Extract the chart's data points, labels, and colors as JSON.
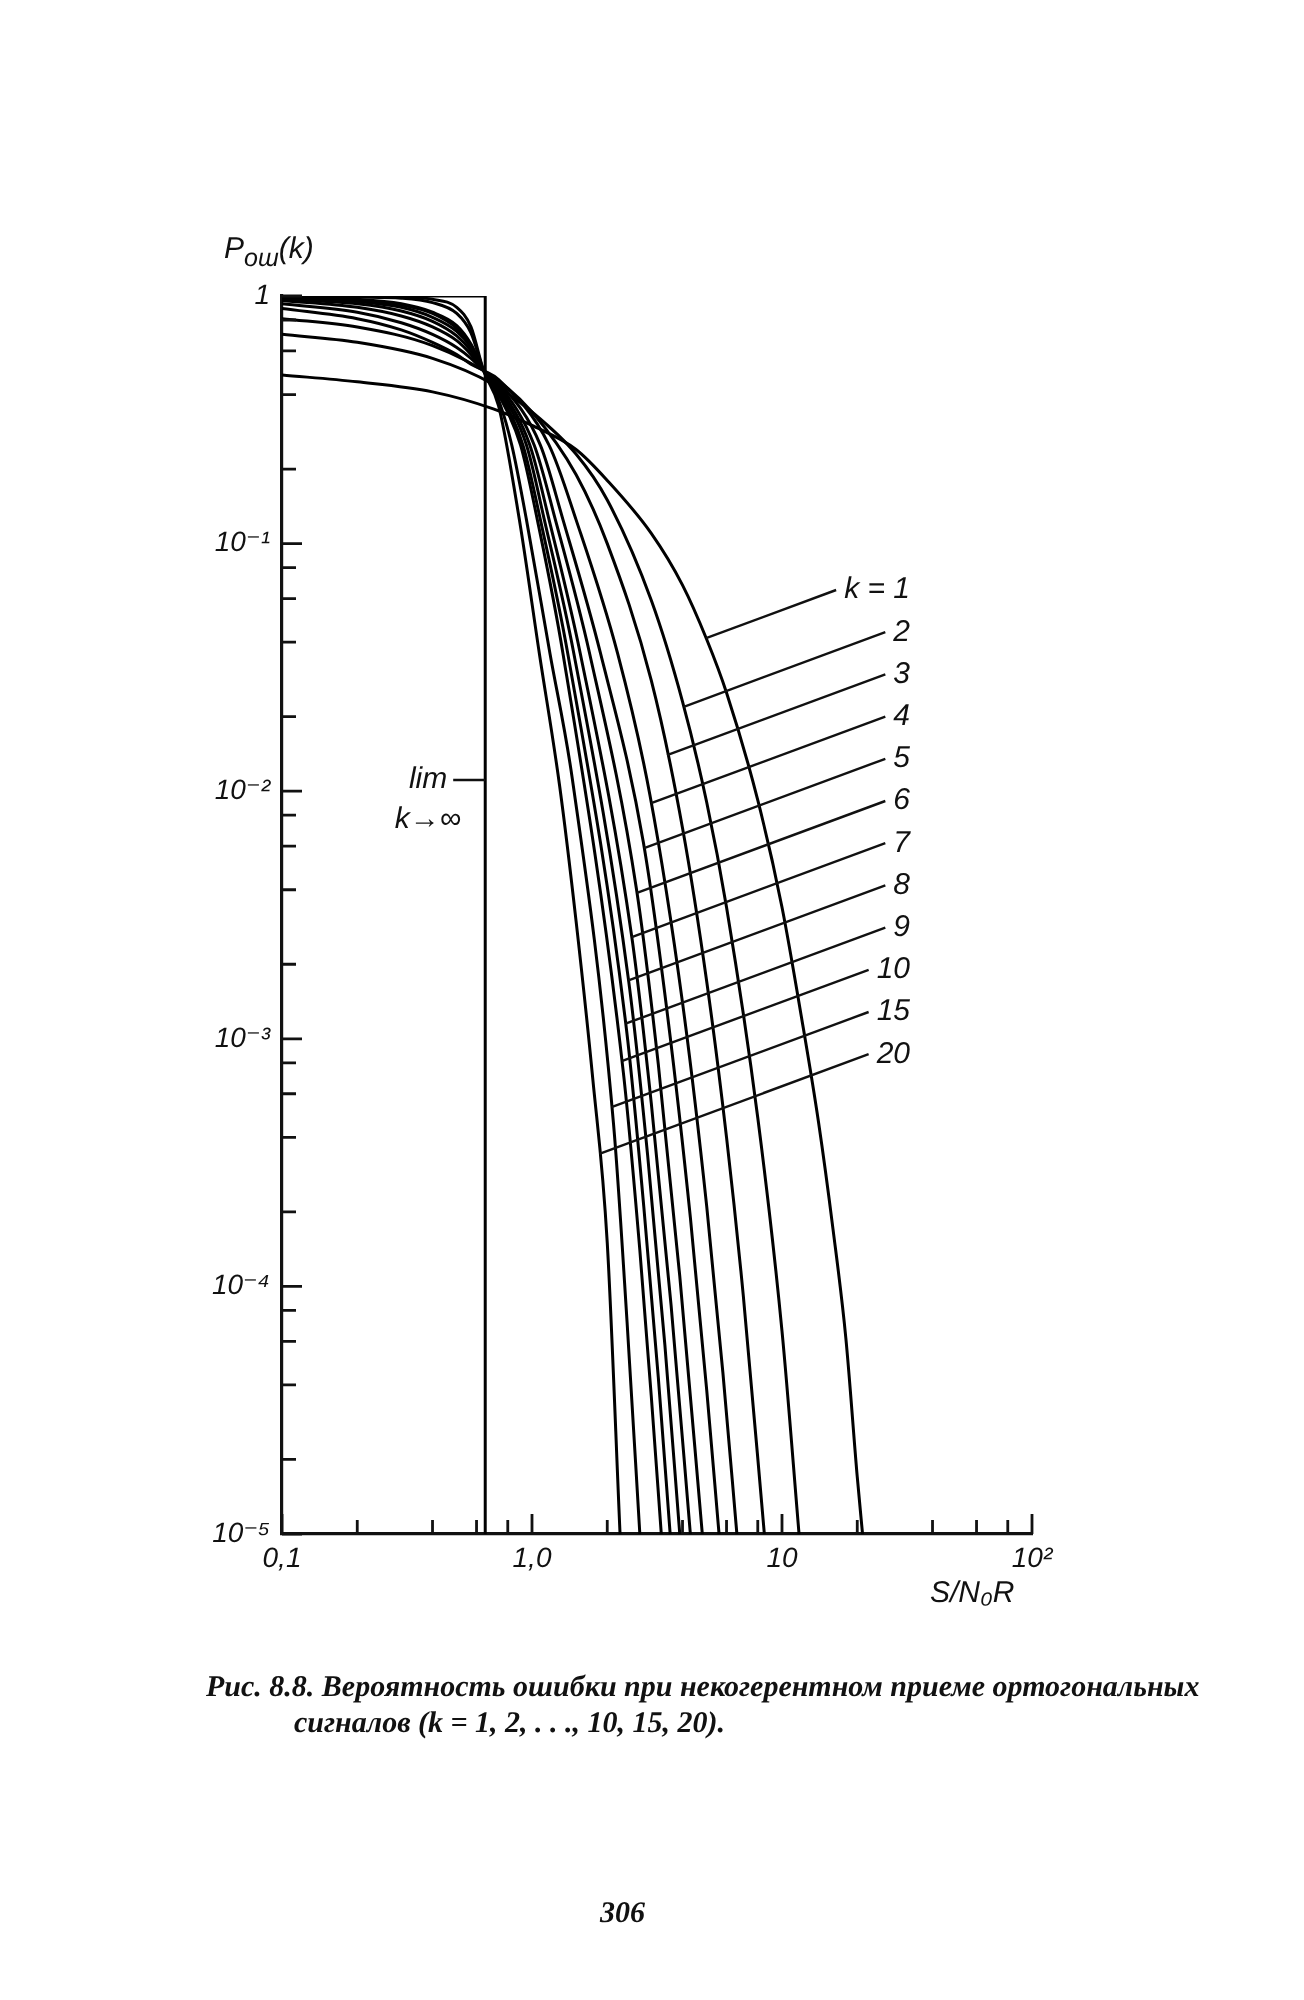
{
  "chart_data": {
    "type": "line",
    "log": "xy",
    "xlabel": "S/N₀R",
    "ylabel": "P$_{ош}$(k)",
    "xlim": [
      0.1,
      100
    ],
    "ylim": [
      1e-05,
      1
    ],
    "xticks": [
      {
        "value": 0.1,
        "label": "0,1"
      },
      {
        "value": 0.2,
        "label": null
      },
      {
        "value": 0.4,
        "label": null
      },
      {
        "value": 0.6,
        "label": null
      },
      {
        "value": 0.8,
        "label": null
      },
      {
        "value": 1,
        "label": "1,0"
      },
      {
        "value": 2,
        "label": null
      },
      {
        "value": 4,
        "label": null
      },
      {
        "value": 6,
        "label": null
      },
      {
        "value": 8,
        "label": null
      },
      10,
      {
        "value": 20,
        "label": null
      },
      {
        "value": 40,
        "label": null
      },
      {
        "value": 60,
        "label": null
      },
      {
        "value": 80,
        "label": null
      },
      {
        "value": 100,
        "label": "10²"
      }
    ],
    "yticks": [
      {
        "value": 1e-05,
        "label": "10⁻⁵"
      },
      {
        "value": 2e-05,
        "label": null
      },
      {
        "value": 4e-05,
        "label": null
      },
      {
        "value": 6e-05,
        "label": null
      },
      {
        "value": 8e-05,
        "label": null
      },
      {
        "value": 0.0001,
        "label": "10⁻⁴"
      },
      {
        "value": 0.0002,
        "label": null
      },
      {
        "value": 0.0004,
        "label": null
      },
      {
        "value": 0.0006,
        "label": null
      },
      {
        "value": 0.0008,
        "label": null
      },
      {
        "value": 0.001,
        "label": "10⁻³"
      },
      {
        "value": 0.002,
        "label": null
      },
      {
        "value": 0.004,
        "label": null
      },
      {
        "value": 0.006,
        "label": null
      },
      {
        "value": 0.008,
        "label": null
      },
      {
        "value": 0.01,
        "label": "10⁻²"
      },
      {
        "value": 0.02,
        "label": null
      },
      {
        "value": 0.04,
        "label": null
      },
      {
        "value": 0.06,
        "label": null
      },
      {
        "value": 0.08,
        "label": null
      },
      {
        "value": 0.1,
        "label": "10⁻¹"
      },
      {
        "value": 0.2,
        "label": null
      },
      {
        "value": 0.4,
        "label": null
      },
      {
        "value": 0.6,
        "label": null
      },
      {
        "value": 0.8,
        "label": null
      },
      1
    ],
    "series": [
      {
        "name": "k = 1",
        "color": "#000000",
        "x": [
          0.1,
          0.2,
          0.4,
          0.7,
          1,
          1.5,
          2,
          3,
          4,
          5,
          6,
          8,
          10,
          12,
          14,
          16,
          18,
          20,
          21
        ],
        "values": [
          0.48,
          0.45,
          0.41,
          0.35,
          0.3,
          0.24,
          0.18,
          0.11,
          0.068,
          0.041,
          0.025,
          0.0092,
          0.0034,
          0.0012,
          0.00046,
          0.00017,
          6.2e-05,
          1.7e-05,
          1e-05
        ]
      },
      {
        "name": "2",
        "color": "#000000",
        "x": [
          0.1,
          0.2,
          0.4,
          0.7,
          1,
          1.5,
          2,
          3,
          4,
          5,
          6,
          8,
          10,
          11.7
        ],
        "values": [
          0.7,
          0.65,
          0.56,
          0.44,
          0.34,
          0.23,
          0.15,
          0.059,
          0.023,
          0.009,
          0.0034,
          0.00048,
          6.6e-05,
          1e-05
        ]
      },
      {
        "name": "3",
        "color": "#000000",
        "x": [
          0.1,
          0.2,
          0.4,
          0.7,
          1,
          1.5,
          2,
          3,
          4,
          5,
          6,
          7,
          8.5
        ],
        "values": [
          0.81,
          0.75,
          0.63,
          0.47,
          0.34,
          0.19,
          0.1,
          0.028,
          0.0071,
          0.0017,
          0.0004,
          9.2e-05,
          1e-05
        ]
      },
      {
        "name": "4",
        "color": "#000000",
        "x": [
          0.1,
          0.2,
          0.3,
          0.4,
          0.5,
          0.57,
          0.64,
          0.735,
          1.17,
          1.5,
          2.2,
          2.96,
          4,
          5,
          5.8,
          6.6
        ],
        "values": [
          0.89,
          0.81,
          0.73,
          0.65,
          0.58,
          0.53,
          0.5,
          0.46,
          0.25,
          0.125,
          0.036,
          0.0097,
          0.0014,
          0.00021,
          4.5e-05,
          1e-05
        ]
      },
      {
        "name": "5",
        "color": "#000000",
        "x": [
          0.1,
          0.2,
          0.3,
          0.4,
          0.5,
          0.57,
          0.64,
          0.735,
          1.08,
          1.33,
          1.88,
          2.79,
          3.5,
          4.3,
          5,
          5.6
        ],
        "values": [
          0.93,
          0.86,
          0.78,
          0.7,
          0.62,
          0.56,
          0.5,
          0.45,
          0.25,
          0.125,
          0.036,
          0.0062,
          0.0012,
          0.00019,
          3.8e-05,
          1e-05
        ]
      },
      {
        "name": "6",
        "color": "#000000",
        "x": [
          0.1,
          0.2,
          0.3,
          0.4,
          0.5,
          0.57,
          0.64,
          0.735,
          1.02,
          1.24,
          1.7,
          2.62,
          3.2,
          3.9,
          4.8
        ],
        "values": [
          0.96,
          0.9,
          0.83,
          0.75,
          0.66,
          0.58,
          0.5,
          0.44,
          0.25,
          0.125,
          0.036,
          0.004,
          0.00079,
          0.00011,
          1e-05
        ]
      },
      {
        "name": "7",
        "color": "#000000",
        "x": [
          0.1,
          0.2,
          0.3,
          0.4,
          0.5,
          0.57,
          0.64,
          0.735,
          0.98,
          1.17,
          1.56,
          2.51,
          3,
          3.6,
          4.3
        ],
        "values": [
          0.97,
          0.93,
          0.87,
          0.79,
          0.69,
          0.6,
          0.5,
          0.43,
          0.25,
          0.125,
          0.036,
          0.00256,
          0.00055,
          8.4e-05,
          1e-05
        ]
      },
      {
        "name": "8",
        "color": "#000000",
        "x": [
          0.1,
          0.2,
          0.3,
          0.4,
          0.5,
          0.57,
          0.64,
          0.735,
          0.95,
          1.12,
          1.47,
          2.44,
          2.9,
          3.4,
          3.9
        ],
        "values": [
          0.98,
          0.95,
          0.9,
          0.82,
          0.72,
          0.62,
          0.5,
          0.42,
          0.25,
          0.125,
          0.036,
          0.00169,
          0.00034,
          5.8e-05,
          1e-05
        ]
      },
      {
        "name": "9",
        "color": "#000000",
        "x": [
          0.1,
          0.2,
          0.3,
          0.4,
          0.5,
          0.57,
          0.64,
          0.735,
          0.92,
          1.08,
          1.39,
          2.39,
          2.8,
          3.2,
          3.57
        ],
        "values": [
          0.99,
          0.96,
          0.92,
          0.85,
          0.74,
          0.63,
          0.5,
          0.41,
          0.25,
          0.125,
          0.036,
          0.00108,
          0.00021,
          4.3e-05,
          1e-05
        ]
      },
      {
        "name": "10",
        "color": "#000000",
        "x": [
          0.1,
          0.2,
          0.3,
          0.4,
          0.5,
          0.57,
          0.64,
          0.735,
          0.9,
          1.05,
          1.33,
          2.32,
          2.7,
          3,
          3.29
        ],
        "values": [
          0.99,
          0.97,
          0.93,
          0.86,
          0.76,
          0.64,
          0.5,
          0.4,
          0.25,
          0.125,
          0.036,
          0.00073,
          0.00014,
          3.6e-05,
          1e-05
        ]
      },
      {
        "name": "15",
        "color": "#000000",
        "x": [
          0.1,
          0.2,
          0.3,
          0.4,
          0.5,
          0.57,
          0.64,
          0.735,
          0.83,
          0.95,
          1.18,
          1.45,
          2.12,
          2.4,
          2.7
        ],
        "values": [
          1,
          0.99,
          0.98,
          0.94,
          0.85,
          0.71,
          0.5,
          0.38,
          0.25,
          0.125,
          0.036,
          0.0112,
          0.00045,
          7.2e-05,
          1e-05
        ]
      },
      {
        "name": "20",
        "color": "#000000",
        "x": [
          0.1,
          0.2,
          0.3,
          0.4,
          0.5,
          0.57,
          0.64,
          0.735,
          0.89,
          1.07,
          1.29,
          1.5,
          1.75,
          2,
          2.25
        ],
        "values": [
          1,
          1,
          0.99,
          0.97,
          0.9,
          0.75,
          0.5,
          0.36,
          0.125,
          0.036,
          0.0105,
          0.003,
          0.00069,
          0.00015,
          1e-05
        ]
      },
      {
        "name": "lim k→∞",
        "type": "step",
        "color": "#000000",
        "x": [
          0.1,
          0.65,
          0.65
        ],
        "values": [
          1,
          1,
          1e-05
        ]
      }
    ],
    "annotations": [
      "Рис. 8.8. Вероятность ошибки при некогерентном приеме ортогональных сигналов (k = 1, 2, . . ., 10, 15, 20).",
      "306"
    ]
  }
}
